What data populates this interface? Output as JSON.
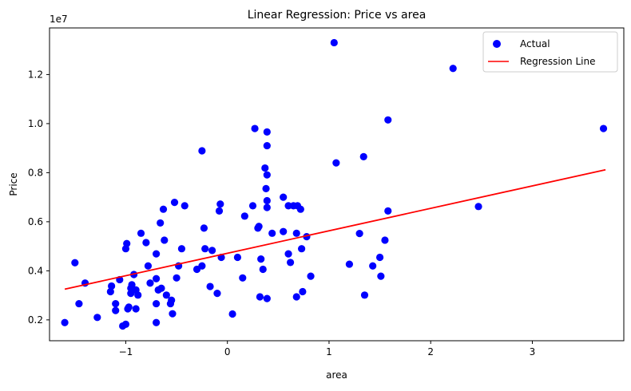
{
  "chart_data": {
    "type": "scatter",
    "title": "Linear Regression: Price vs area",
    "xlabel": "area",
    "ylabel": "Price",
    "y_scale_label": "1e7",
    "xlim": [
      -1.75,
      3.9
    ],
    "ylim": [
      1150000,
      13900000
    ],
    "x_ticks": [
      -1,
      0,
      1,
      2,
      3
    ],
    "x_tick_labels": [
      "−1",
      "0",
      "1",
      "2",
      "3"
    ],
    "y_ticks": [
      2000000,
      4000000,
      6000000,
      8000000,
      10000000,
      12000000
    ],
    "y_tick_labels": [
      "0.2",
      "0.4",
      "0.6",
      "0.8",
      "1.0",
      "1.2"
    ],
    "grid": false,
    "legend_position": "upper-right",
    "colors": {
      "points": "#0000ff",
      "line": "#ff0000"
    },
    "series": [
      {
        "name": "Actual",
        "kind": "scatter",
        "points": [
          [
            -1.6,
            1890000
          ],
          [
            -1.5,
            4330000
          ],
          [
            -1.46,
            2660000
          ],
          [
            -1.4,
            3500000
          ],
          [
            -1.28,
            2100000
          ],
          [
            -1.15,
            3150000
          ],
          [
            -1.14,
            3380000
          ],
          [
            -1.1,
            2660000
          ],
          [
            -1.1,
            2380000
          ],
          [
            -1.06,
            3640000
          ],
          [
            -1.03,
            1750000
          ],
          [
            -1.0,
            1820000
          ],
          [
            -1.0,
            4900000
          ],
          [
            -0.99,
            5110000
          ],
          [
            -0.98,
            2450000
          ],
          [
            -0.97,
            2520000
          ],
          [
            -0.95,
            3290000
          ],
          [
            -0.95,
            3080000
          ],
          [
            -0.94,
            3430000
          ],
          [
            -0.92,
            3850000
          ],
          [
            -0.9,
            3220000
          ],
          [
            -0.9,
            2450000
          ],
          [
            -0.88,
            3010000
          ],
          [
            -0.85,
            5530000
          ],
          [
            -0.8,
            5150000
          ],
          [
            -0.78,
            4200000
          ],
          [
            -0.76,
            3500000
          ],
          [
            -0.7,
            3680000
          ],
          [
            -0.7,
            4690000
          ],
          [
            -0.7,
            2660000
          ],
          [
            -0.7,
            1890000
          ],
          [
            -0.68,
            3220000
          ],
          [
            -0.66,
            5950000
          ],
          [
            -0.65,
            3290000
          ],
          [
            -0.63,
            6510000
          ],
          [
            -0.62,
            5250000
          ],
          [
            -0.6,
            3010000
          ],
          [
            -0.56,
            2660000
          ],
          [
            -0.55,
            2800000
          ],
          [
            -0.54,
            2250000
          ],
          [
            -0.52,
            6790000
          ],
          [
            -0.5,
            3710000
          ],
          [
            -0.48,
            4200000
          ],
          [
            -0.45,
            4900000
          ],
          [
            -0.42,
            6650000
          ],
          [
            -0.3,
            4060000
          ],
          [
            -0.25,
            8890000
          ],
          [
            -0.25,
            4200000
          ],
          [
            -0.23,
            5740000
          ],
          [
            -0.22,
            4900000
          ],
          [
            -0.17,
            3360000
          ],
          [
            -0.15,
            4830000
          ],
          [
            -0.1,
            3080000
          ],
          [
            -0.08,
            6440000
          ],
          [
            -0.07,
            6720000
          ],
          [
            -0.06,
            4550000
          ],
          [
            0.05,
            2240000
          ],
          [
            0.1,
            4550000
          ],
          [
            0.15,
            3710000
          ],
          [
            0.17,
            6230000
          ],
          [
            0.25,
            6650000
          ],
          [
            0.27,
            9800000
          ],
          [
            0.3,
            5740000
          ],
          [
            0.31,
            5810000
          ],
          [
            0.32,
            2940000
          ],
          [
            0.33,
            4480000
          ],
          [
            0.35,
            4060000
          ],
          [
            0.37,
            8190000
          ],
          [
            0.38,
            7350000
          ],
          [
            0.39,
            6860000
          ],
          [
            0.39,
            6580000
          ],
          [
            0.39,
            9100000
          ],
          [
            0.39,
            9660000
          ],
          [
            0.39,
            7910000
          ],
          [
            0.39,
            2870000
          ],
          [
            0.44,
            5530000
          ],
          [
            0.55,
            5600000
          ],
          [
            0.55,
            7000000
          ],
          [
            0.6,
            6650000
          ],
          [
            0.6,
            4690000
          ],
          [
            0.62,
            4340000
          ],
          [
            0.65,
            6650000
          ],
          [
            0.68,
            5530000
          ],
          [
            0.68,
            2940000
          ],
          [
            0.69,
            6650000
          ],
          [
            0.72,
            6510000
          ],
          [
            0.73,
            4900000
          ],
          [
            0.74,
            3150000
          ],
          [
            0.78,
            5390000
          ],
          [
            0.82,
            3780000
          ],
          [
            1.05,
            13300000
          ],
          [
            1.07,
            8400000
          ],
          [
            1.2,
            4270000
          ],
          [
            1.3,
            5520000
          ],
          [
            1.34,
            8650000
          ],
          [
            1.35,
            3010000
          ],
          [
            1.43,
            4200000
          ],
          [
            1.5,
            4550000
          ],
          [
            1.51,
            3780000
          ],
          [
            1.55,
            5250000
          ],
          [
            1.58,
            10150000
          ],
          [
            1.58,
            6440000
          ],
          [
            2.22,
            12250000
          ],
          [
            2.47,
            6620000
          ],
          [
            3.7,
            9800000
          ]
        ]
      },
      {
        "name": "Regression Line",
        "kind": "line",
        "points": [
          [
            -1.6,
            3250000
          ],
          [
            3.72,
            8120000
          ]
        ]
      }
    ]
  }
}
